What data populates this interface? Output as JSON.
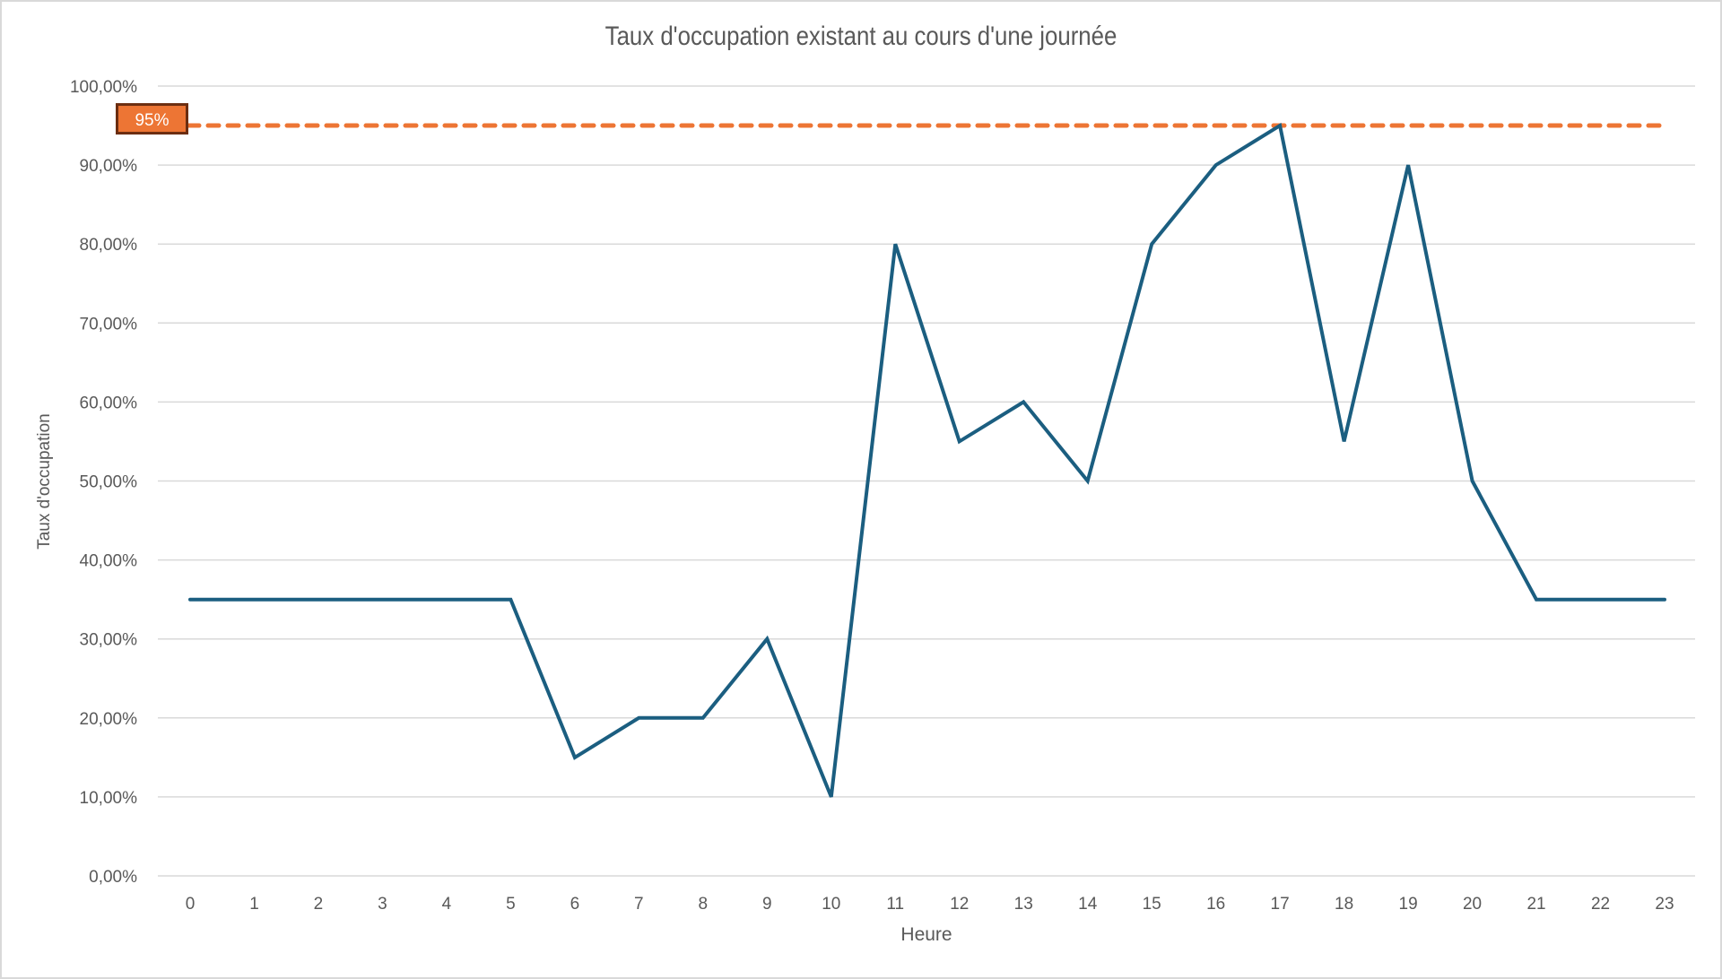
{
  "chart_data": {
    "type": "line",
    "title": "Taux d'occupation existant au cours d'une journée",
    "xlabel": "Heure",
    "ylabel": "Taux d'occupation",
    "categories": [
      "0",
      "1",
      "2",
      "3",
      "4",
      "5",
      "6",
      "7",
      "8",
      "9",
      "10",
      "11",
      "12",
      "13",
      "14",
      "15",
      "16",
      "17",
      "18",
      "19",
      "20",
      "21",
      "22",
      "23"
    ],
    "series": [
      {
        "name": "Taux d'occupation",
        "color": "#1b5e80",
        "values": [
          35,
          35,
          35,
          35,
          35,
          35,
          15,
          20,
          20,
          30,
          10,
          80,
          55,
          60,
          50,
          80,
          90,
          95,
          55,
          90,
          50,
          35,
          35,
          35
        ]
      }
    ],
    "reference_line": {
      "value": 95,
      "label": "95%",
      "color": "#ed7534",
      "style": "dashed",
      "label_border": "#6b2d10"
    },
    "yticks": [
      "0,00%",
      "10,00%",
      "20,00%",
      "30,00%",
      "40,00%",
      "50,00%",
      "60,00%",
      "70,00%",
      "80,00%",
      "90,00%",
      "100,00%"
    ],
    "ylim": [
      0,
      100
    ],
    "grid": true,
    "legend": "none"
  }
}
